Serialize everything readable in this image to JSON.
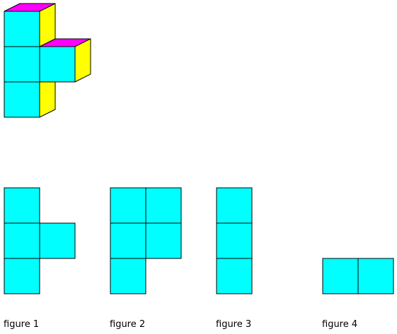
{
  "colors": {
    "front": "#00ffff",
    "side": "#ffff00",
    "top": "#ff00ff",
    "stroke": "#000000",
    "background": "#ffffff"
  },
  "solid": {
    "cubes": [
      {
        "column": 0,
        "row": 0
      },
      {
        "column": 0,
        "row": 1
      },
      {
        "column": 1,
        "row": 1
      },
      {
        "column": 0,
        "row": 2
      }
    ]
  },
  "views": [
    {
      "caption": "figure 1",
      "cells": [
        [
          0,
          0
        ],
        [
          0,
          1
        ],
        [
          1,
          1
        ],
        [
          0,
          2
        ]
      ]
    },
    {
      "caption": "figure 2",
      "cells": [
        [
          0,
          0
        ],
        [
          1,
          0
        ],
        [
          0,
          1
        ],
        [
          1,
          1
        ],
        [
          0,
          2
        ]
      ]
    },
    {
      "caption": "figure 3",
      "cells": [
        [
          0,
          0
        ],
        [
          0,
          1
        ],
        [
          0,
          2
        ]
      ]
    },
    {
      "caption": "figure 4",
      "cells": [
        [
          0,
          2
        ],
        [
          1,
          2
        ]
      ]
    }
  ]
}
